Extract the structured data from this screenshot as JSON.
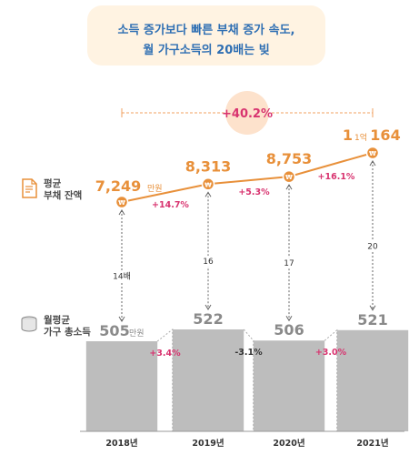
{
  "title": {
    "line1": "소득 증가보다 빠른 부채 증가 속도,",
    "line2": "월 가구소득의 20배는 빚"
  },
  "labels": {
    "debt_line1": "평균",
    "debt_line2": "부채 잔액",
    "income_line1": "월평균",
    "income_line2": "가구 총소득"
  },
  "colors": {
    "accent": "#e8903a",
    "positive": "#d8336f",
    "bar": "#bdbdbd",
    "title": "#2f6fb3"
  },
  "chart_data": {
    "type": "line+bar",
    "categories": [
      "2018년",
      "2019년",
      "2020년",
      "2021년"
    ],
    "debt": {
      "values": [
        7249,
        8313,
        8753,
        10164
      ],
      "labels": [
        "7,249",
        "8,313",
        "8,753",
        "164"
      ],
      "unit_first": "만원",
      "prefix_last": "1억",
      "changes": [
        "+14.7%",
        "+5.3%",
        "+16.1%"
      ],
      "total_change": "+40.2%"
    },
    "income": {
      "values": [
        505,
        522,
        506,
        521
      ],
      "labels": [
        "505",
        "522",
        "506",
        "521"
      ],
      "unit_first": "만원",
      "changes": [
        "+3.4%",
        "-3.1%",
        "+3.0%"
      ]
    },
    "ratios": [
      "14배",
      "16",
      "17",
      "20"
    ]
  }
}
